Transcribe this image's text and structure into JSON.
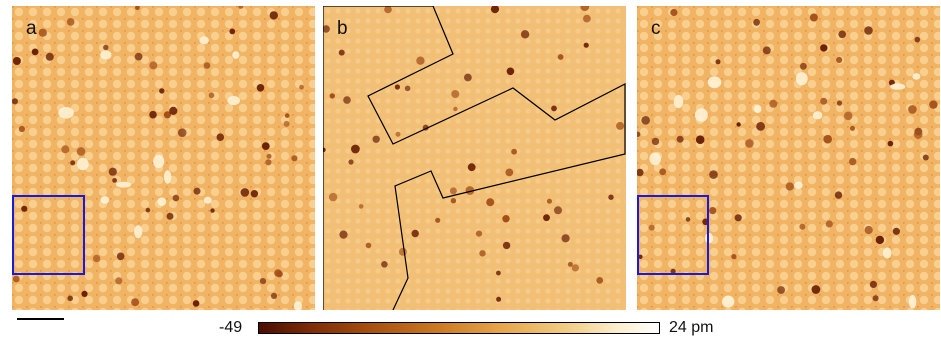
{
  "panels": [
    {
      "label": "a"
    },
    {
      "label": "b"
    },
    {
      "label": "c"
    }
  ],
  "colorbar": {
    "min_label": "-49",
    "max_label": "24 pm"
  },
  "colors": {
    "background": "#f1b262",
    "dark_adatom": "#5a1a04",
    "bright_feature": "#fff4dc",
    "highlight_box": "#1a1adb",
    "outline": "#000000"
  }
}
